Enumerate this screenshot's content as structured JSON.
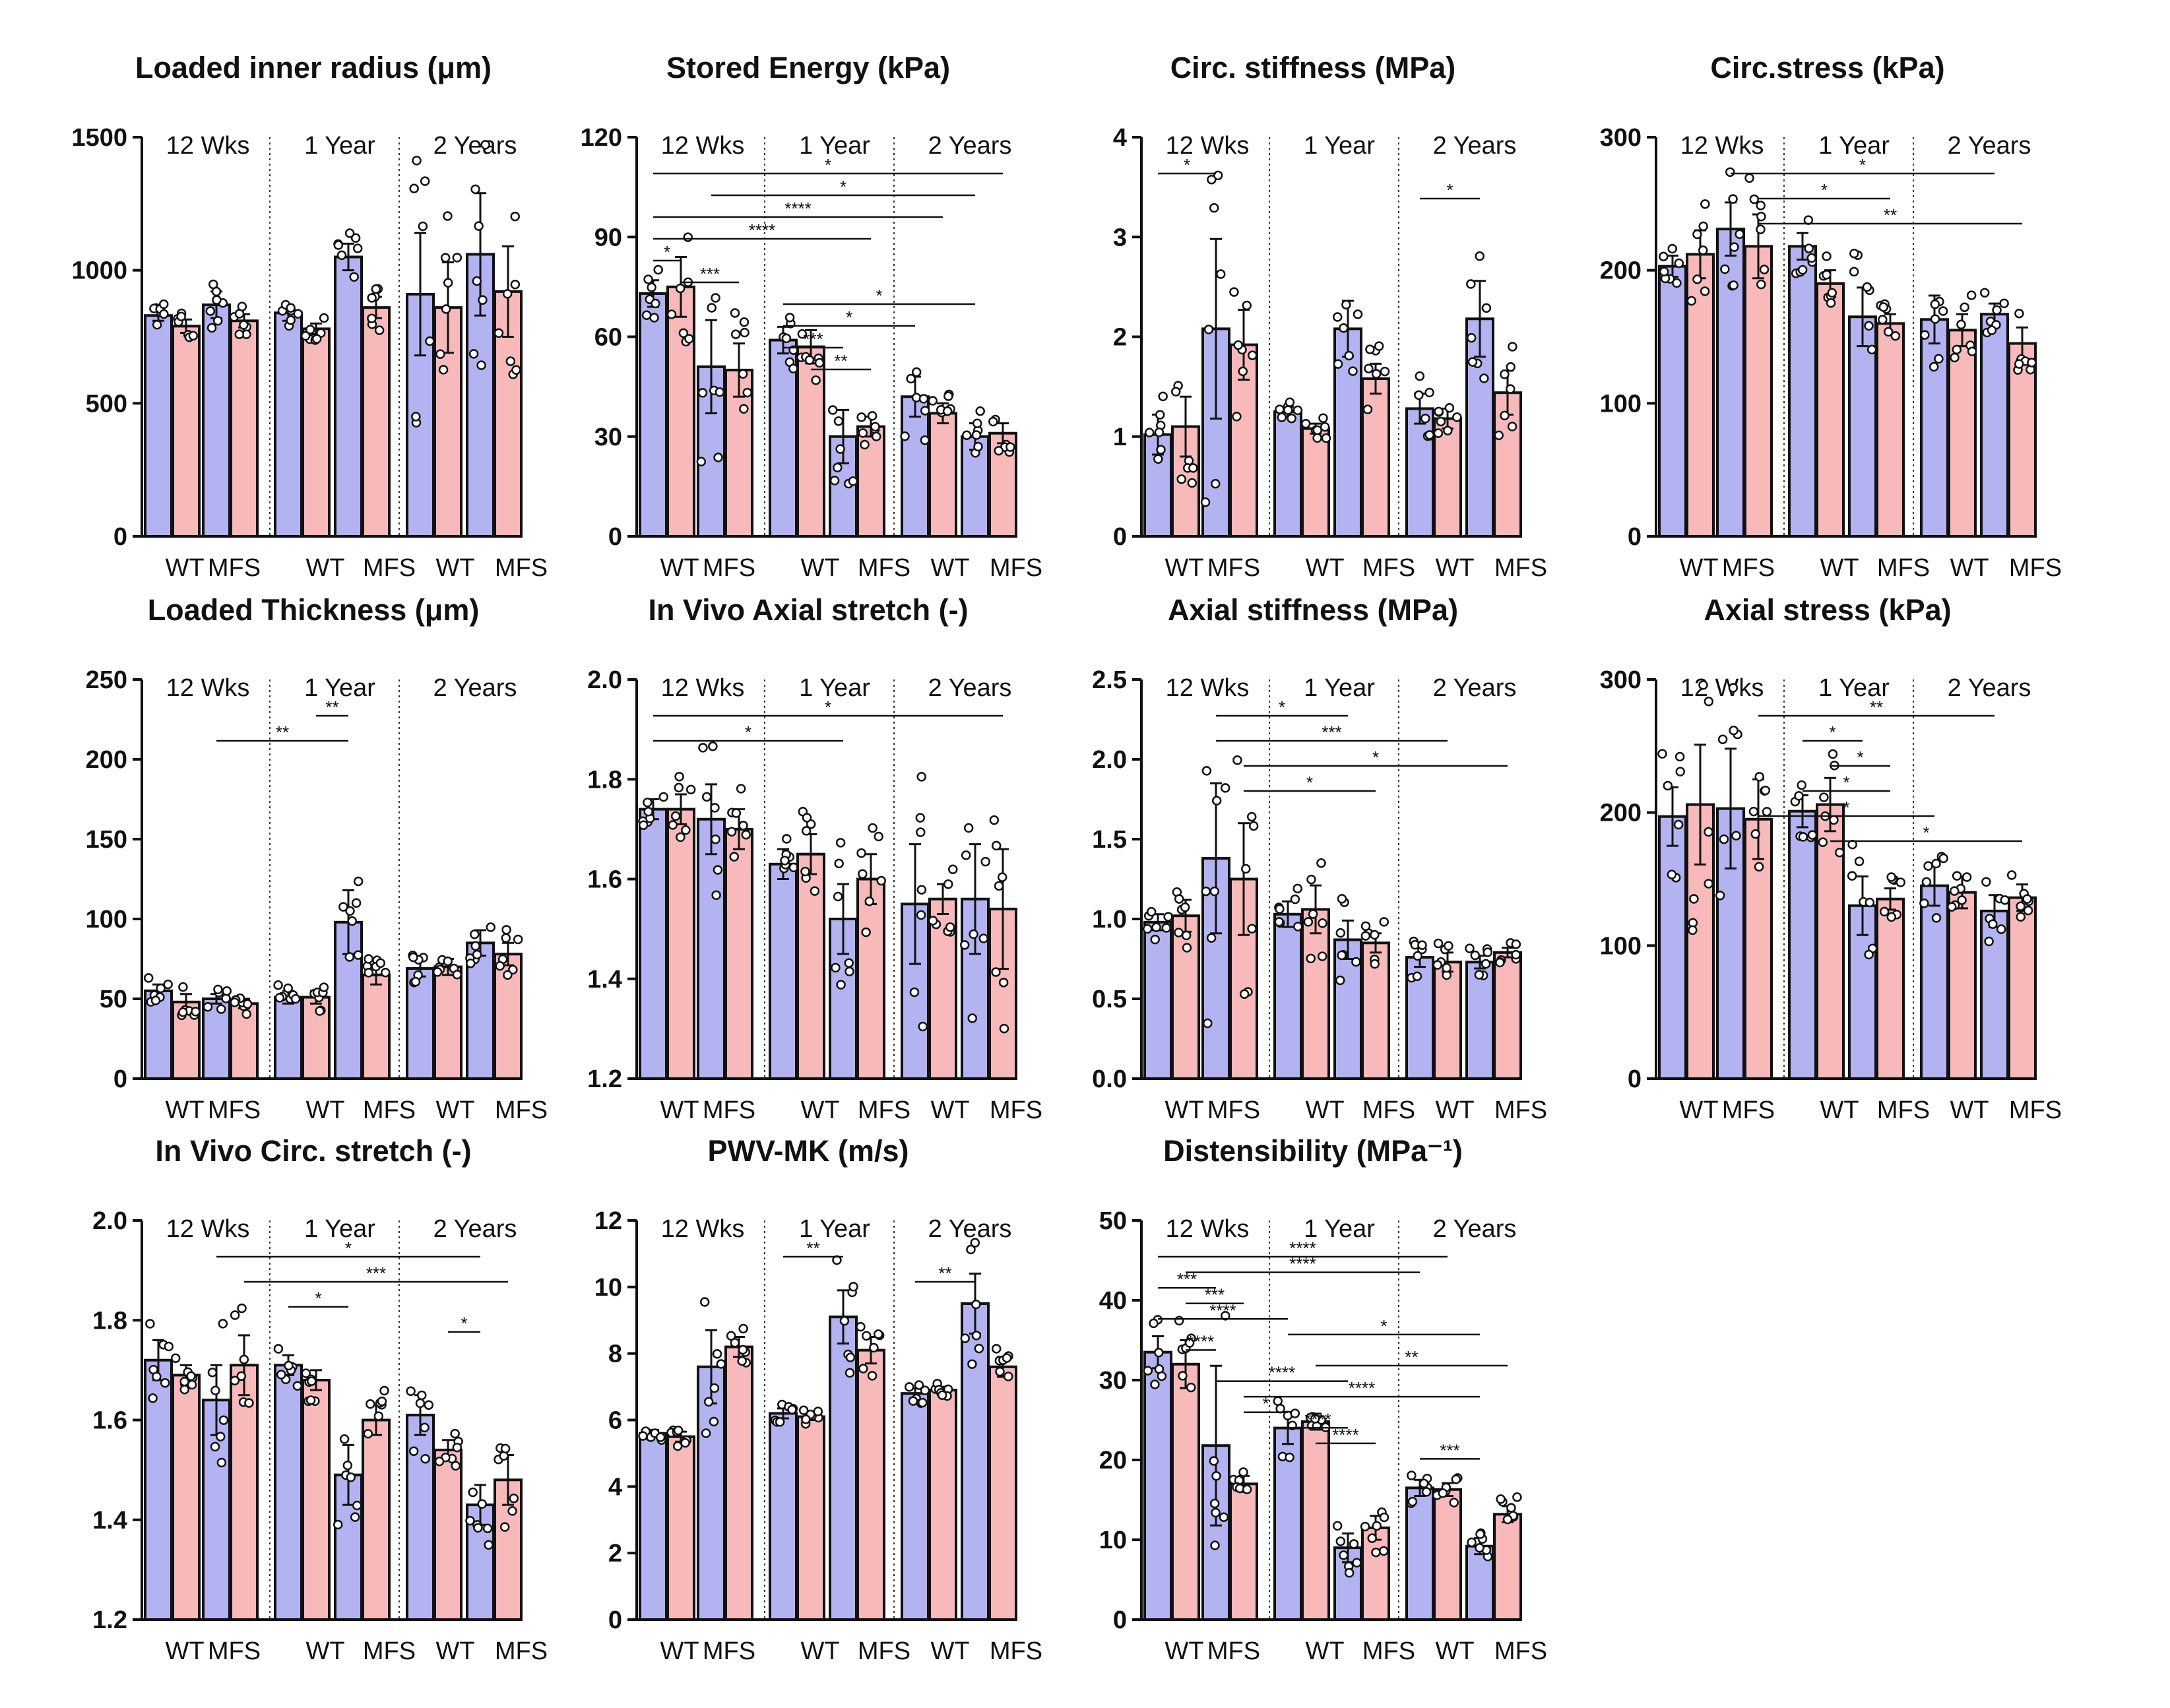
{
  "colors": {
    "wt": "#b3b3f2",
    "mfs": "#f7b9b9",
    "outline": "#111111"
  },
  "group_labels": [
    "12 Wks",
    "1 Year",
    "2 Years"
  ],
  "x_labels": [
    "WT",
    "MFS"
  ],
  "chart_data": [
    {
      "type": "bar",
      "title": "Loaded inner radius (μm)",
      "ylim": [
        0,
        1500
      ],
      "yticks": [
        "0",
        "500",
        "1000",
        "1500"
      ],
      "values": [
        830,
        790,
        870,
        810,
        840,
        780,
        1050,
        860,
        910,
        860,
        1060,
        920
      ],
      "err": [
        20,
        25,
        50,
        25,
        30,
        20,
        50,
        40,
        230,
        170,
        230,
        170
      ],
      "brackets": []
    },
    {
      "type": "bar",
      "title": "Stored Energy (kPa)",
      "ylim": [
        0,
        120
      ],
      "yticks": [
        "0",
        "30",
        "60",
        "90",
        "120"
      ],
      "values": [
        73,
        75,
        51,
        50,
        59,
        57,
        30,
        33,
        42,
        37,
        30,
        31
      ],
      "err": [
        4,
        9,
        14,
        8,
        4,
        5,
        8,
        3,
        6,
        3,
        4,
        3
      ],
      "brackets": [
        {
          "from": 0,
          "to": 11,
          "label": "*"
        },
        {
          "from": 2,
          "to": 10,
          "label": "*"
        },
        {
          "from": 0,
          "to": 9,
          "label": "****"
        },
        {
          "from": 0,
          "to": 7,
          "label": "****"
        },
        {
          "from": 0,
          "to": 1,
          "label": "*"
        },
        {
          "from": 1,
          "to": 3,
          "label": "***"
        },
        {
          "from": 4,
          "to": 10,
          "label": "*"
        },
        {
          "from": 4,
          "to": 8,
          "label": "*"
        },
        {
          "from": 4,
          "to": 6,
          "label": "***"
        },
        {
          "from": 5,
          "to": 7,
          "label": "**"
        }
      ]
    },
    {
      "type": "bar",
      "title": "Circ. stiffness (MPa)",
      "ylim": [
        0,
        4
      ],
      "yticks": [
        "0",
        "1",
        "2",
        "3",
        "4"
      ],
      "values": [
        1.02,
        1.1,
        2.08,
        1.92,
        1.25,
        1.08,
        2.08,
        1.58,
        1.28,
        1.18,
        2.18,
        1.44
      ],
      "err": [
        0.2,
        0.3,
        0.9,
        0.35,
        0.05,
        0.05,
        0.28,
        0.15,
        0.15,
        0.1,
        0.38,
        0.22
      ],
      "brackets": [
        {
          "from": 0,
          "to": 2,
          "label": "*"
        },
        {
          "from": 8,
          "to": 10,
          "label": "*"
        }
      ]
    },
    {
      "type": "bar",
      "title": "Circ.stress (kPa)",
      "ylim": [
        0,
        300
      ],
      "yticks": [
        "0",
        "100",
        "200",
        "300"
      ],
      "values": [
        203,
        212,
        231,
        218,
        218,
        190,
        165,
        160,
        163,
        155,
        167,
        145
      ],
      "err": [
        8,
        18,
        20,
        24,
        10,
        10,
        22,
        7,
        18,
        12,
        8,
        12
      ],
      "brackets": [
        {
          "from": 2,
          "to": 10,
          "label": "*"
        },
        {
          "from": 3,
          "to": 7,
          "label": "*"
        },
        {
          "from": 3,
          "to": 11,
          "label": "**"
        }
      ]
    },
    {
      "type": "bar",
      "title": "Loaded Thickness (μm)",
      "ylim": [
        0,
        250
      ],
      "yticks": [
        "0",
        "50",
        "100",
        "150",
        "200",
        "250"
      ],
      "values": [
        55,
        48,
        50,
        47,
        51,
        51,
        98,
        65,
        69,
        70,
        85,
        78
      ],
      "err": [
        4,
        5,
        3,
        3,
        4,
        4,
        20,
        6,
        5,
        5,
        8,
        7
      ],
      "brackets": [
        {
          "from": 5,
          "to": 6,
          "label": "**"
        },
        {
          "from": 2,
          "to": 6,
          "label": "**"
        }
      ]
    },
    {
      "type": "bar",
      "title": "In Vivo Axial stretch (-)",
      "ylim": [
        1.2,
        2.0
      ],
      "yticks": [
        "1.2",
        "1.4",
        "1.6",
        "1.8",
        "2.0"
      ],
      "values": [
        1.74,
        1.74,
        1.72,
        1.7,
        1.63,
        1.65,
        1.52,
        1.6,
        1.55,
        1.56,
        1.56,
        1.54
      ],
      "err": [
        0.02,
        0.03,
        0.07,
        0.04,
        0.03,
        0.04,
        0.07,
        0.05,
        0.12,
        0.03,
        0.11,
        0.12
      ],
      "brackets": [
        {
          "from": 0,
          "to": 11,
          "label": "*"
        },
        {
          "from": 0,
          "to": 6,
          "label": "*"
        }
      ]
    },
    {
      "type": "bar",
      "title": "Axial stiffness (MPa)",
      "ylim": [
        0,
        2.5
      ],
      "yticks": [
        "0.0",
        "0.5",
        "1.0",
        "1.5",
        "2.0",
        "2.5"
      ],
      "values": [
        0.98,
        1.02,
        1.38,
        1.25,
        1.03,
        1.06,
        0.87,
        0.85,
        0.76,
        0.73,
        0.73,
        0.79
      ],
      "err": [
        0.05,
        0.1,
        0.47,
        0.35,
        0.08,
        0.15,
        0.12,
        0.06,
        0.06,
        0.06,
        0.04,
        0.03
      ],
      "brackets": [
        {
          "from": 2,
          "to": 6,
          "label": "*"
        },
        {
          "from": 2,
          "to": 9,
          "label": "***"
        },
        {
          "from": 3,
          "to": 11,
          "label": "*"
        },
        {
          "from": 3,
          "to": 7,
          "label": "*"
        }
      ]
    },
    {
      "type": "bar",
      "title": "Axial stress (kPa)",
      "ylim": [
        0,
        300
      ],
      "yticks": [
        "0",
        "100",
        "200",
        "300"
      ],
      "values": [
        197,
        206,
        203,
        195,
        201,
        206,
        130,
        135,
        145,
        140,
        126,
        136
      ],
      "err": [
        22,
        45,
        45,
        30,
        12,
        20,
        22,
        8,
        15,
        12,
        12,
        10
      ],
      "brackets": [
        {
          "from": 3,
          "to": 10,
          "label": "**"
        },
        {
          "from": 4,
          "to": 6,
          "label": "*"
        },
        {
          "from": 5,
          "to": 7,
          "label": "*"
        },
        {
          "from": 4,
          "to": 7,
          "label": "*"
        },
        {
          "from": 3,
          "to": 8,
          "label": "*"
        },
        {
          "from": 5,
          "to": 11,
          "label": "*"
        }
      ]
    },
    {
      "type": "bar",
      "title": "In Vivo Circ. stretch (-)",
      "ylim": [
        1.2,
        2.0
      ],
      "yticks": [
        "1.2",
        "1.4",
        "1.6",
        "1.8",
        "2.0"
      ],
      "values": [
        1.72,
        1.69,
        1.64,
        1.71,
        1.71,
        1.68,
        1.49,
        1.6,
        1.61,
        1.54,
        1.43,
        1.48
      ],
      "err": [
        0.04,
        0.02,
        0.07,
        0.06,
        0.02,
        0.02,
        0.06,
        0.03,
        0.04,
        0.02,
        0.04,
        0.05
      ],
      "brackets": [
        {
          "from": 2,
          "to": 10,
          "label": "*"
        },
        {
          "from": 3,
          "to": 11,
          "label": "***"
        },
        {
          "from": 4,
          "to": 6,
          "label": "*"
        },
        {
          "from": 9,
          "to": 10,
          "label": "*"
        }
      ]
    },
    {
      "type": "bar",
      "title": "PWV-MK (m/s)",
      "ylim": [
        0,
        12
      ],
      "yticks": [
        "0",
        "2",
        "4",
        "6",
        "8",
        "10",
        "12"
      ],
      "values": [
        5.6,
        5.5,
        7.6,
        8.2,
        6.2,
        6.1,
        9.1,
        8.1,
        6.8,
        6.9,
        9.5,
        7.6
      ],
      "err": [
        0.1,
        0.15,
        1.1,
        0.3,
        0.15,
        0.1,
        0.8,
        0.4,
        0.15,
        0.1,
        0.9,
        0.3
      ],
      "brackets": [
        {
          "from": 4,
          "to": 6,
          "label": "**"
        },
        {
          "from": 8,
          "to": 10,
          "label": "**"
        }
      ]
    },
    {
      "type": "bar",
      "title": "Distensibility (MPa⁻¹)",
      "ylim": [
        0,
        50
      ],
      "yticks": [
        "0",
        "10",
        "20",
        "30",
        "40",
        "50"
      ],
      "values": [
        33.5,
        32,
        21.8,
        17,
        24,
        24.8,
        9,
        11.5,
        16.5,
        16.3,
        9.2,
        13.2
      ],
      "err": [
        2,
        3,
        10,
        1,
        2,
        1,
        1.8,
        1.5,
        1,
        0.8,
        1,
        1
      ],
      "brackets": [
        {
          "from": 0,
          "to": 9,
          "label": "****"
        },
        {
          "from": 1,
          "to": 8,
          "label": "****"
        },
        {
          "from": 0,
          "to": 2,
          "label": "***"
        },
        {
          "from": 1,
          "to": 3,
          "label": "***"
        },
        {
          "from": 0,
          "to": 4,
          "label": "****"
        },
        {
          "from": 4,
          "to": 10,
          "label": "*"
        },
        {
          "from": 1,
          "to": 2,
          "label": "****"
        },
        {
          "from": 5,
          "to": 11,
          "label": "**"
        },
        {
          "from": 2,
          "to": 6,
          "label": "****"
        },
        {
          "from": 3,
          "to": 10,
          "label": "****"
        },
        {
          "from": 3,
          "to": 4,
          "label": "*"
        },
        {
          "from": 4,
          "to": 6,
          "label": "****"
        },
        {
          "from": 5,
          "to": 7,
          "label": "****"
        },
        {
          "from": 8,
          "to": 10,
          "label": "***"
        }
      ]
    }
  ]
}
